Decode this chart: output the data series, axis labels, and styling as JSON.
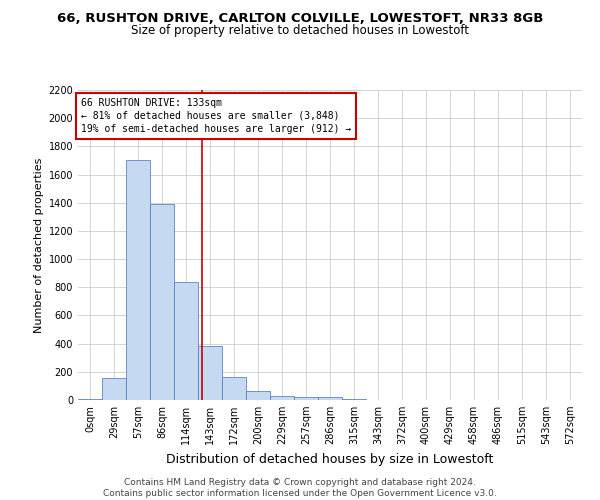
{
  "title1": "66, RUSHTON DRIVE, CARLTON COLVILLE, LOWESTOFT, NR33 8GB",
  "title2": "Size of property relative to detached houses in Lowestoft",
  "xlabel": "Distribution of detached houses by size in Lowestoft",
  "ylabel": "Number of detached properties",
  "categories": [
    "0sqm",
    "29sqm",
    "57sqm",
    "86sqm",
    "114sqm",
    "143sqm",
    "172sqm",
    "200sqm",
    "229sqm",
    "257sqm",
    "286sqm",
    "315sqm",
    "343sqm",
    "372sqm",
    "400sqm",
    "429sqm",
    "458sqm",
    "486sqm",
    "515sqm",
    "543sqm",
    "572sqm"
  ],
  "bar_values": [
    10,
    155,
    1700,
    1390,
    835,
    385,
    160,
    65,
    28,
    22,
    22,
    8,
    0,
    0,
    0,
    0,
    0,
    0,
    0,
    0,
    0
  ],
  "bar_color": "#c5d9f0",
  "bar_edge_color": "#4472c4",
  "property_line_x": 4.67,
  "property_line_label": "66 RUSHTON DRIVE: 133sqm",
  "annotation_line1": "← 81% of detached houses are smaller (3,848)",
  "annotation_line2": "19% of semi-detached houses are larger (912) →",
  "annotation_box_color": "#ffffff",
  "annotation_box_edge": "#cc0000",
  "ylim": [
    0,
    2200
  ],
  "yticks": [
    0,
    200,
    400,
    600,
    800,
    1000,
    1200,
    1400,
    1600,
    1800,
    2000,
    2200
  ],
  "grid_color": "#cccccc",
  "footer": "Contains HM Land Registry data © Crown copyright and database right 2024.\nContains public sector information licensed under the Open Government Licence v3.0.",
  "bg_color": "#ffffff",
  "title1_fontsize": 9.5,
  "title2_fontsize": 8.5,
  "axis_label_fontsize": 8,
  "tick_fontsize": 7,
  "footer_fontsize": 6.5
}
